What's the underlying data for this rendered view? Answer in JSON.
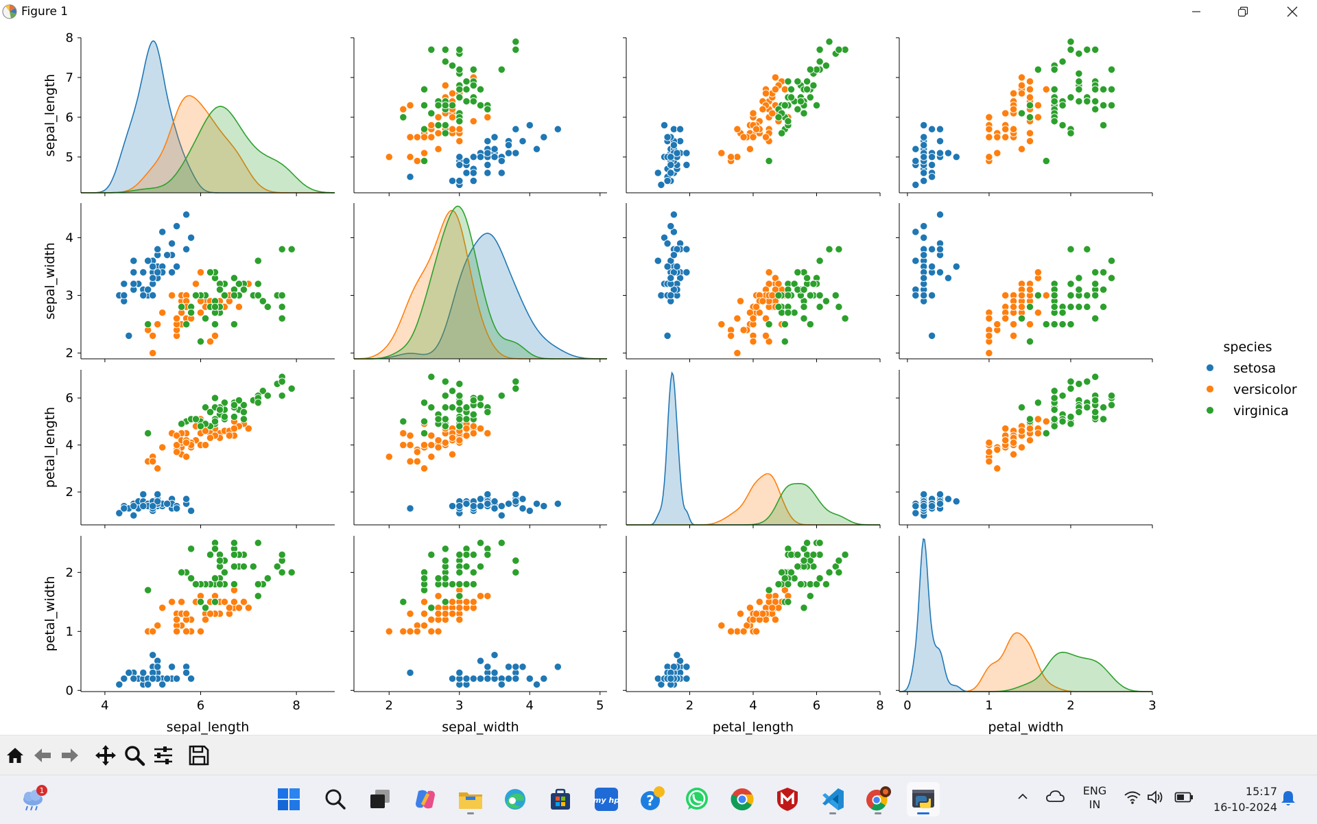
{
  "window": {
    "title": "Figure 1",
    "controls": [
      "minimize",
      "restore",
      "close"
    ]
  },
  "chart_data": {
    "type": "scatter",
    "variables": [
      "sepal_length",
      "sepal_width",
      "petal_length",
      "petal_width"
    ],
    "ticks": {
      "sepal_length": [
        4,
        6,
        8
      ],
      "sepal_width": [
        2,
        3,
        4,
        5
      ],
      "petal_length": [
        2,
        4,
        6,
        8
      ],
      "petal_width": [
        0,
        1,
        2,
        3
      ]
    },
    "row_ticks": {
      "sepal_length": [
        5,
        6,
        7,
        8
      ],
      "sepal_width": [
        2,
        3,
        4
      ],
      "petal_length": [
        2,
        4,
        6
      ],
      "petal_width": [
        0,
        1,
        2
      ]
    },
    "ranges": {
      "sepal_length": [
        3.5,
        8.8
      ],
      "sepal_width": [
        1.5,
        5.1
      ],
      "petal_length": [
        0.0,
        8.0
      ],
      "petal_width": [
        -0.1,
        3.0
      ]
    },
    "row_ranges": {
      "sepal_length": [
        4.1,
        8.0
      ],
      "sepal_width": [
        1.9,
        4.6
      ],
      "petal_length": [
        0.6,
        7.2
      ],
      "petal_width": [
        -0.02,
        2.62
      ]
    },
    "diagonal": "kde",
    "legend": {
      "title": "species",
      "placement": "center-right"
    },
    "colors": {
      "setosa": "#1f77b4",
      "versicolor": "#ff7f0e",
      "virginica": "#2ca02c"
    },
    "series": [
      {
        "name": "setosa",
        "color": "#1f77b4",
        "points": [
          [
            5.1,
            3.5,
            1.4,
            0.2
          ],
          [
            4.9,
            3.0,
            1.4,
            0.2
          ],
          [
            4.7,
            3.2,
            1.3,
            0.2
          ],
          [
            4.6,
            3.1,
            1.5,
            0.2
          ],
          [
            5.0,
            3.6,
            1.4,
            0.2
          ],
          [
            5.4,
            3.9,
            1.7,
            0.4
          ],
          [
            4.6,
            3.4,
            1.4,
            0.3
          ],
          [
            5.0,
            3.4,
            1.5,
            0.2
          ],
          [
            4.4,
            2.9,
            1.4,
            0.2
          ],
          [
            4.9,
            3.1,
            1.5,
            0.1
          ],
          [
            5.4,
            3.7,
            1.5,
            0.2
          ],
          [
            4.8,
            3.4,
            1.6,
            0.2
          ],
          [
            4.8,
            3.0,
            1.4,
            0.1
          ],
          [
            4.3,
            3.0,
            1.1,
            0.1
          ],
          [
            5.8,
            4.0,
            1.2,
            0.2
          ],
          [
            5.7,
            4.4,
            1.5,
            0.4
          ],
          [
            5.4,
            3.9,
            1.3,
            0.4
          ],
          [
            5.1,
            3.5,
            1.4,
            0.3
          ],
          [
            5.7,
            3.8,
            1.7,
            0.3
          ],
          [
            5.1,
            3.8,
            1.5,
            0.3
          ],
          [
            5.4,
            3.4,
            1.7,
            0.2
          ],
          [
            5.1,
            3.7,
            1.5,
            0.4
          ],
          [
            4.6,
            3.6,
            1.0,
            0.2
          ],
          [
            5.1,
            3.3,
            1.7,
            0.5
          ],
          [
            4.8,
            3.4,
            1.9,
            0.2
          ],
          [
            5.0,
            3.0,
            1.6,
            0.2
          ],
          [
            5.0,
            3.4,
            1.6,
            0.4
          ],
          [
            5.2,
            3.5,
            1.5,
            0.2
          ],
          [
            5.2,
            3.4,
            1.4,
            0.2
          ],
          [
            4.7,
            3.2,
            1.6,
            0.2
          ],
          [
            4.8,
            3.1,
            1.6,
            0.2
          ],
          [
            5.4,
            3.4,
            1.5,
            0.4
          ],
          [
            5.2,
            4.1,
            1.5,
            0.1
          ],
          [
            5.5,
            4.2,
            1.4,
            0.2
          ],
          [
            4.9,
            3.1,
            1.5,
            0.2
          ],
          [
            5.0,
            3.2,
            1.2,
            0.2
          ],
          [
            5.5,
            3.5,
            1.3,
            0.2
          ],
          [
            4.9,
            3.6,
            1.4,
            0.1
          ],
          [
            4.4,
            3.0,
            1.3,
            0.2
          ],
          [
            5.1,
            3.4,
            1.5,
            0.2
          ],
          [
            5.0,
            3.5,
            1.3,
            0.3
          ],
          [
            4.5,
            2.3,
            1.3,
            0.3
          ],
          [
            4.4,
            3.2,
            1.3,
            0.2
          ],
          [
            5.0,
            3.5,
            1.6,
            0.6
          ],
          [
            5.1,
            3.8,
            1.9,
            0.4
          ],
          [
            4.8,
            3.0,
            1.4,
            0.3
          ],
          [
            5.1,
            3.8,
            1.6,
            0.2
          ],
          [
            4.6,
            3.2,
            1.4,
            0.2
          ],
          [
            5.3,
            3.7,
            1.5,
            0.2
          ],
          [
            5.0,
            3.3,
            1.4,
            0.2
          ]
        ]
      },
      {
        "name": "versicolor",
        "color": "#ff7f0e",
        "points": [
          [
            7.0,
            3.2,
            4.7,
            1.4
          ],
          [
            6.4,
            3.2,
            4.5,
            1.5
          ],
          [
            6.9,
            3.1,
            4.9,
            1.5
          ],
          [
            5.5,
            2.3,
            4.0,
            1.3
          ],
          [
            6.5,
            2.8,
            4.6,
            1.5
          ],
          [
            5.7,
            2.8,
            4.5,
            1.3
          ],
          [
            6.3,
            3.3,
            4.7,
            1.6
          ],
          [
            4.9,
            2.4,
            3.3,
            1.0
          ],
          [
            6.6,
            2.9,
            4.6,
            1.3
          ],
          [
            5.2,
            2.7,
            3.9,
            1.4
          ],
          [
            5.0,
            2.0,
            3.5,
            1.0
          ],
          [
            5.9,
            3.0,
            4.2,
            1.5
          ],
          [
            6.0,
            2.2,
            4.0,
            1.0
          ],
          [
            6.1,
            2.9,
            4.7,
            1.4
          ],
          [
            5.6,
            2.9,
            3.6,
            1.3
          ],
          [
            6.7,
            3.1,
            4.4,
            1.4
          ],
          [
            5.6,
            3.0,
            4.5,
            1.5
          ],
          [
            5.8,
            2.7,
            4.1,
            1.0
          ],
          [
            6.2,
            2.2,
            4.5,
            1.5
          ],
          [
            5.6,
            2.5,
            3.9,
            1.1
          ],
          [
            5.9,
            3.2,
            4.8,
            1.8
          ],
          [
            6.1,
            2.8,
            4.0,
            1.3
          ],
          [
            6.3,
            2.5,
            4.9,
            1.5
          ],
          [
            6.1,
            2.8,
            4.7,
            1.2
          ],
          [
            6.4,
            2.9,
            4.3,
            1.3
          ],
          [
            6.6,
            3.0,
            4.4,
            1.4
          ],
          [
            6.8,
            2.8,
            4.8,
            1.4
          ],
          [
            6.7,
            3.0,
            5.0,
            1.7
          ],
          [
            6.0,
            2.9,
            4.5,
            1.5
          ],
          [
            5.7,
            2.6,
            3.5,
            1.0
          ],
          [
            5.5,
            2.4,
            3.8,
            1.1
          ],
          [
            5.5,
            2.4,
            3.7,
            1.0
          ],
          [
            5.8,
            2.7,
            3.9,
            1.2
          ],
          [
            6.0,
            2.7,
            5.1,
            1.6
          ],
          [
            5.4,
            3.0,
            4.5,
            1.5
          ],
          [
            6.0,
            3.4,
            4.5,
            1.6
          ],
          [
            6.7,
            3.1,
            4.7,
            1.5
          ],
          [
            6.3,
            2.3,
            4.4,
            1.3
          ],
          [
            5.6,
            3.0,
            4.1,
            1.3
          ],
          [
            5.5,
            2.5,
            4.0,
            1.3
          ],
          [
            5.5,
            2.6,
            4.4,
            1.2
          ],
          [
            6.1,
            3.0,
            4.6,
            1.4
          ],
          [
            5.8,
            2.6,
            4.0,
            1.2
          ],
          [
            5.0,
            2.3,
            3.3,
            1.0
          ],
          [
            5.6,
            2.7,
            4.2,
            1.3
          ],
          [
            5.7,
            3.0,
            4.2,
            1.2
          ],
          [
            5.7,
            2.9,
            4.2,
            1.3
          ],
          [
            6.2,
            2.9,
            4.3,
            1.3
          ],
          [
            5.1,
            2.5,
            3.0,
            1.1
          ],
          [
            5.7,
            2.8,
            4.1,
            1.3
          ]
        ]
      },
      {
        "name": "virginica",
        "color": "#2ca02c",
        "points": [
          [
            6.3,
            3.3,
            6.0,
            2.5
          ],
          [
            5.8,
            2.7,
            5.1,
            1.9
          ],
          [
            7.1,
            3.0,
            5.9,
            2.1
          ],
          [
            6.3,
            2.9,
            5.6,
            1.8
          ],
          [
            6.5,
            3.0,
            5.8,
            2.2
          ],
          [
            7.6,
            3.0,
            6.6,
            2.1
          ],
          [
            4.9,
            2.5,
            4.5,
            1.7
          ],
          [
            7.3,
            2.9,
            6.3,
            1.8
          ],
          [
            6.7,
            2.5,
            5.8,
            1.8
          ],
          [
            7.2,
            3.6,
            6.1,
            2.5
          ],
          [
            6.5,
            3.2,
            5.1,
            2.0
          ],
          [
            6.4,
            2.7,
            5.3,
            1.9
          ],
          [
            6.8,
            3.0,
            5.5,
            2.1
          ],
          [
            5.7,
            2.5,
            5.0,
            2.0
          ],
          [
            5.8,
            2.8,
            5.1,
            2.4
          ],
          [
            6.4,
            3.2,
            5.3,
            2.3
          ],
          [
            6.5,
            3.0,
            5.5,
            1.8
          ],
          [
            7.7,
            3.8,
            6.7,
            2.2
          ],
          [
            7.7,
            2.6,
            6.9,
            2.3
          ],
          [
            6.0,
            2.2,
            5.0,
            1.5
          ],
          [
            6.9,
            3.2,
            5.7,
            2.3
          ],
          [
            5.6,
            2.8,
            4.9,
            2.0
          ],
          [
            7.7,
            2.8,
            6.7,
            2.0
          ],
          [
            6.3,
            2.7,
            4.9,
            1.8
          ],
          [
            6.7,
            3.3,
            5.7,
            2.1
          ],
          [
            7.2,
            3.2,
            6.0,
            1.8
          ],
          [
            6.2,
            2.8,
            4.8,
            1.8
          ],
          [
            6.1,
            3.0,
            4.9,
            1.8
          ],
          [
            6.4,
            2.8,
            5.6,
            2.1
          ],
          [
            7.2,
            3.0,
            5.8,
            1.6
          ],
          [
            7.4,
            2.8,
            6.1,
            1.9
          ],
          [
            7.9,
            3.8,
            6.4,
            2.0
          ],
          [
            6.4,
            2.8,
            5.6,
            2.2
          ],
          [
            6.3,
            2.8,
            5.1,
            1.5
          ],
          [
            6.1,
            2.6,
            5.6,
            1.4
          ],
          [
            7.7,
            3.0,
            6.1,
            2.3
          ],
          [
            6.3,
            3.4,
            5.6,
            2.4
          ],
          [
            6.4,
            3.1,
            5.5,
            1.8
          ],
          [
            6.0,
            3.0,
            4.8,
            1.8
          ],
          [
            6.9,
            3.1,
            5.4,
            2.1
          ],
          [
            6.7,
            3.1,
            5.6,
            2.4
          ],
          [
            6.9,
            3.1,
            5.1,
            2.3
          ],
          [
            5.8,
            2.7,
            5.1,
            1.9
          ],
          [
            6.8,
            3.2,
            5.9,
            2.3
          ],
          [
            6.7,
            3.3,
            5.7,
            2.5
          ],
          [
            6.7,
            3.0,
            5.2,
            2.3
          ],
          [
            6.3,
            2.5,
            5.0,
            1.9
          ],
          [
            6.5,
            3.0,
            5.2,
            2.0
          ],
          [
            6.2,
            3.4,
            5.4,
            2.3
          ],
          [
            5.9,
            3.0,
            5.1,
            1.8
          ]
        ]
      }
    ]
  },
  "toolbar": {
    "buttons": [
      {
        "name": "home-button",
        "icon": "home-icon"
      },
      {
        "name": "back-button",
        "icon": "arrow-left-icon"
      },
      {
        "name": "forward-button",
        "icon": "arrow-right-icon"
      },
      {
        "name": "pan-button",
        "icon": "move-icon"
      },
      {
        "name": "zoom-button",
        "icon": "magnifier-icon"
      },
      {
        "name": "configure-subplots-button",
        "icon": "sliders-icon"
      },
      {
        "name": "save-button",
        "icon": "floppy-disk-icon"
      }
    ]
  },
  "taskbar": {
    "weather_badge": "1",
    "language": "ENG",
    "region": "IN",
    "time": "15:17",
    "date": "16-10-2024",
    "colors": {
      "accent": "#1f6fd8"
    }
  }
}
